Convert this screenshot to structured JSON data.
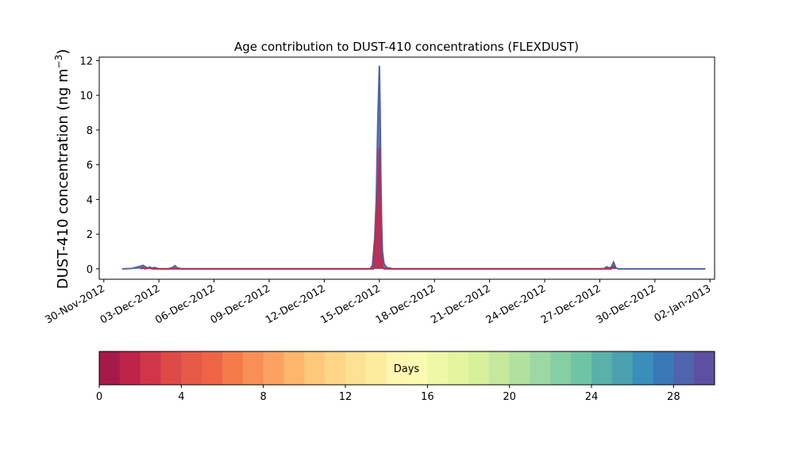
{
  "chart_data": {
    "type": "area",
    "title": "Age contribution to DUST-410 concentrations (FLEXDUST)",
    "ylabel": "DUST-410 concentration (ng m",
    "ylabel_exponent": "−3",
    "ylabel_close": ")",
    "xlabel": "",
    "x_ticks": [
      "30-Nov-2012",
      "03-Dec-2012",
      "06-Dec-2012",
      "09-Dec-2012",
      "12-Dec-2012",
      "15-Dec-2012",
      "18-Dec-2012",
      "21-Dec-2012",
      "24-Dec-2012",
      "27-Dec-2012",
      "30-Dec-2012",
      "02-Jan-2013"
    ],
    "xlim": [
      "2012-11-29T18:00",
      "2013-01-02T06:00"
    ],
    "ylim": [
      -0.6,
      12.2
    ],
    "y_ticks": [
      0,
      2,
      4,
      6,
      8,
      10,
      12
    ],
    "grid": false,
    "series_total": {
      "name": "",
      "color": "#4e62a8",
      "points": [
        [
          "2012-12-01T00:00",
          0.0
        ],
        [
          "2012-12-01T12:00",
          0.02
        ],
        [
          "2012-12-01T18:00",
          0.08
        ],
        [
          "2012-12-02T00:00",
          0.15
        ],
        [
          "2012-12-02T03:00",
          0.2
        ],
        [
          "2012-12-02T06:00",
          0.12
        ],
        [
          "2012-12-02T09:00",
          0.05
        ],
        [
          "2012-12-02T12:00",
          0.1
        ],
        [
          "2012-12-02T15:00",
          0.04
        ],
        [
          "2012-12-02T18:00",
          0.08
        ],
        [
          "2012-12-03T00:00",
          0.0
        ],
        [
          "2012-12-03T12:00",
          0.0
        ],
        [
          "2012-12-03T18:00",
          0.08
        ],
        [
          "2012-12-03T21:00",
          0.18
        ],
        [
          "2012-12-04T00:00",
          0.05
        ],
        [
          "2012-12-04T06:00",
          0.0
        ],
        [
          "2012-12-14T12:00",
          0.0
        ],
        [
          "2012-12-14T15:00",
          0.2
        ],
        [
          "2012-12-14T18:00",
          1.8
        ],
        [
          "2012-12-14T20:00",
          4.0
        ],
        [
          "2012-12-14T22:00",
          8.5
        ],
        [
          "2012-12-15T00:00",
          11.7
        ],
        [
          "2012-12-15T01:00",
          9.0
        ],
        [
          "2012-12-15T02:00",
          5.0
        ],
        [
          "2012-12-15T03:00",
          2.5
        ],
        [
          "2012-12-15T04:00",
          1.0
        ],
        [
          "2012-12-15T06:00",
          0.3
        ],
        [
          "2012-12-15T09:00",
          0.1
        ],
        [
          "2012-12-15T12:00",
          0.05
        ],
        [
          "2012-12-15T18:00",
          0.0
        ],
        [
          "2012-12-27T00:00",
          0.0
        ],
        [
          "2012-12-27T06:00",
          0.02
        ],
        [
          "2012-12-27T09:00",
          0.12
        ],
        [
          "2012-12-27T12:00",
          0.05
        ],
        [
          "2012-12-27T15:00",
          0.1
        ],
        [
          "2012-12-27T18:00",
          0.38
        ],
        [
          "2012-12-27T21:00",
          0.05
        ],
        [
          "2012-12-28T00:00",
          0.0
        ],
        [
          "2013-01-01T18:00",
          0.0
        ]
      ]
    },
    "series_young": {
      "name": "",
      "color": "#c1294a",
      "points": [
        [
          "2012-12-02T00:00",
          0.0
        ],
        [
          "2012-12-02T03:00",
          0.06
        ],
        [
          "2012-12-02T06:00",
          0.0
        ],
        [
          "2012-12-02T12:00",
          0.06
        ],
        [
          "2012-12-02T15:00",
          0.0
        ],
        [
          "2012-12-14T16:00",
          0.0
        ],
        [
          "2012-12-14T18:00",
          1.3
        ],
        [
          "2012-12-14T21:00",
          3.2
        ],
        [
          "2012-12-14T23:00",
          5.4
        ],
        [
          "2012-12-15T00:00",
          7.0
        ],
        [
          "2012-12-15T01:00",
          3.6
        ],
        [
          "2012-12-15T02:00",
          1.2
        ],
        [
          "2012-12-15T04:00",
          0.1
        ],
        [
          "2012-12-15T06:00",
          0.0
        ],
        [
          "2012-12-27T15:00",
          0.0
        ],
        [
          "2012-12-27T18:00",
          0.12
        ],
        [
          "2012-12-27T21:00",
          0.0
        ]
      ]
    },
    "colorbar": {
      "label": "Days",
      "ticks": [
        0,
        4,
        8,
        12,
        16,
        20,
        24,
        28
      ],
      "min": 0,
      "max": 30,
      "colors": [
        "#a51a4a",
        "#be2449",
        "#d03648",
        "#de4a48",
        "#e65a47",
        "#ee6444",
        "#f57a4a",
        "#f89056",
        "#fba262",
        "#fdb66c",
        "#fec87a",
        "#fed586",
        "#fee192",
        "#feec9e",
        "#fef6ae",
        "#fafbb0",
        "#eff8a6",
        "#e5f49e",
        "#d8ef9b",
        "#c6e89c",
        "#b1e09f",
        "#9dd8a4",
        "#85cfa4",
        "#6fc4a6",
        "#5ab1aa",
        "#4ba0b1",
        "#3a8ebb",
        "#3b78b8",
        "#4f64ad",
        "#5e4fa2"
      ]
    }
  }
}
